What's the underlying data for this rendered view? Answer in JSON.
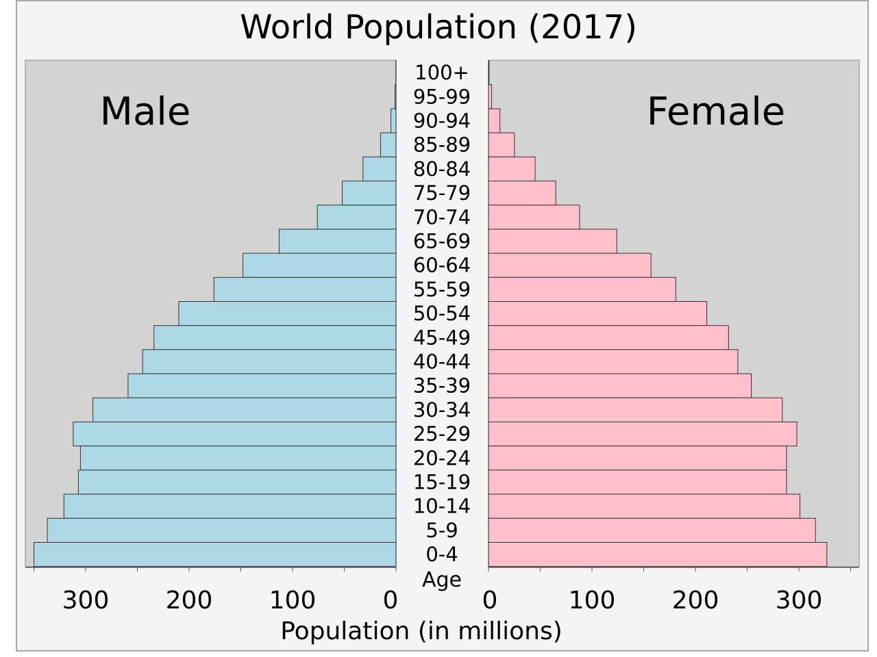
{
  "chart_data": {
    "type": "bar",
    "title": "World Population (2017)",
    "xlabel": "Population (in millions)",
    "age_label": "Age",
    "left_panel_label": "Male",
    "right_panel_label": "Female",
    "xlim": [
      0,
      355
    ],
    "xticks": [
      0,
      100,
      200,
      300
    ],
    "grid": false,
    "categories": [
      "100+",
      "95-99",
      "90-94",
      "85-89",
      "80-84",
      "75-79",
      "70-74",
      "65-69",
      "60-64",
      "55-59",
      "50-54",
      "45-49",
      "40-44",
      "35-39",
      "30-34",
      "25-29",
      "20-24",
      "15-19",
      "10-14",
      "5-9",
      "0-4"
    ],
    "series": [
      {
        "name": "Male",
        "color": "#add8e6",
        "values": [
          0.1,
          1,
          5,
          15,
          32,
          52,
          76,
          113,
          148,
          176,
          210,
          234,
          245,
          259,
          293,
          312,
          305,
          307,
          321,
          337,
          350
        ]
      },
      {
        "name": "Female",
        "color": "#ffc0cb",
        "values": [
          0.5,
          3,
          11,
          25,
          45,
          65,
          88,
          124,
          157,
          181,
          211,
          232,
          241,
          254,
          284,
          298,
          288,
          288,
          301,
          316,
          327
        ]
      }
    ]
  }
}
